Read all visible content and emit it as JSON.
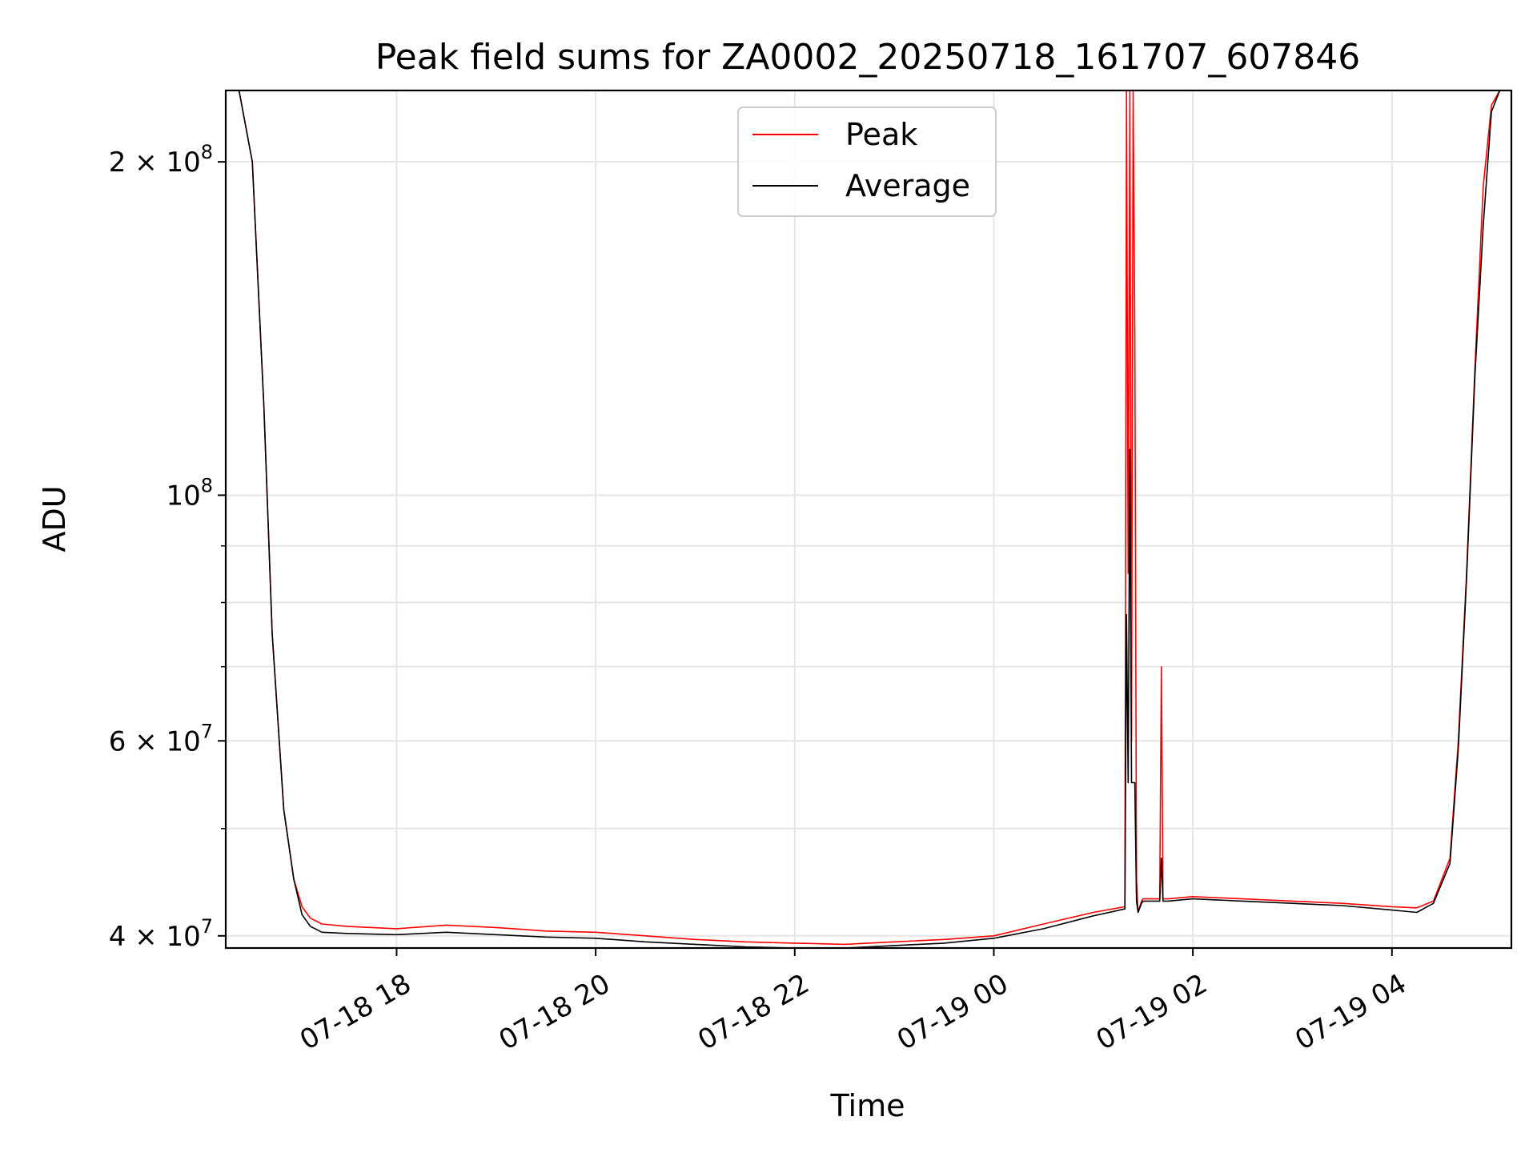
{
  "chart_data": {
    "type": "line",
    "title": "Peak field sums for ZA0002_20250718_161707_607846",
    "xlabel": "Time",
    "ylabel": "ADU",
    "y_scale": "log",
    "ylim": [
      39000000,
      232000000
    ],
    "xlim": [
      "2025-07-18 16:17",
      "2025-07-19 05:12"
    ],
    "grid": true,
    "legend_position": "top-center",
    "x_ticks": [
      {
        "t": "2025-07-18 18:00",
        "label": "07-18 18"
      },
      {
        "t": "2025-07-18 20:00",
        "label": "07-18 20"
      },
      {
        "t": "2025-07-18 22:00",
        "label": "07-18 22"
      },
      {
        "t": "2025-07-19 00:00",
        "label": "07-19 00"
      },
      {
        "t": "2025-07-19 02:00",
        "label": "07-19 02"
      },
      {
        "t": "2025-07-19 04:00",
        "label": "07-19 04"
      }
    ],
    "y_ticks": [
      {
        "value": 40000000,
        "label": "4 × 10",
        "exp": "7"
      },
      {
        "value": 60000000,
        "label": "6 × 10",
        "exp": "7"
      },
      {
        "value": 100000000,
        "label": "10",
        "exp": "8"
      },
      {
        "value": 200000000,
        "label": "2 × 10",
        "exp": "8"
      }
    ],
    "y_minor_ticks": [
      50000000,
      70000000,
      80000000,
      90000000
    ],
    "series": [
      {
        "name": "Peak",
        "color": "#ff0000",
        "x": [
          "2025-07-18 16:17",
          "2025-07-18 16:25",
          "2025-07-18 16:33",
          "2025-07-18 16:40",
          "2025-07-18 16:45",
          "2025-07-18 16:52",
          "2025-07-18 16:58",
          "2025-07-18 17:03",
          "2025-07-18 17:08",
          "2025-07-18 17:15",
          "2025-07-18 17:30",
          "2025-07-18 18:00",
          "2025-07-18 18:30",
          "2025-07-18 19:00",
          "2025-07-18 19:30",
          "2025-07-18 20:00",
          "2025-07-18 20:30",
          "2025-07-18 21:00",
          "2025-07-18 21:30",
          "2025-07-18 22:00",
          "2025-07-18 22:30",
          "2025-07-18 23:00",
          "2025-07-18 23:30",
          "2025-07-19 00:00",
          "2025-07-19 00:30",
          "2025-07-19 01:00",
          "2025-07-19 01:19",
          "2025-07-19 01:20",
          "2025-07-19 01:21",
          "2025-07-19 01:22",
          "2025-07-19 01:23",
          "2025-07-19 01:24",
          "2025-07-19 01:25",
          "2025-07-19 01:26",
          "2025-07-19 01:27",
          "2025-07-19 01:29",
          "2025-07-19 01:30",
          "2025-07-19 01:35",
          "2025-07-19 01:40",
          "2025-07-19 01:41",
          "2025-07-19 01:42",
          "2025-07-19 01:45",
          "2025-07-19 02:00",
          "2025-07-19 02:30",
          "2025-07-19 03:00",
          "2025-07-19 03:30",
          "2025-07-19 04:00",
          "2025-07-19 04:15",
          "2025-07-19 04:25",
          "2025-07-19 04:35",
          "2025-07-19 04:40",
          "2025-07-19 04:45",
          "2025-07-19 04:50",
          "2025-07-19 04:55",
          "2025-07-19 05:00",
          "2025-07-19 05:05",
          "2025-07-19 05:12"
        ],
        "y": [
          232000000,
          232000000,
          200000000,
          120000000,
          75000000,
          52000000,
          45000000,
          42500000,
          41500000,
          41000000,
          40800000,
          40600000,
          40900000,
          40700000,
          40400000,
          40300000,
          40000000,
          39700000,
          39500000,
          39400000,
          39300000,
          39500000,
          39700000,
          40000000,
          41000000,
          42000000,
          42500000,
          232000000,
          85000000,
          232000000,
          60000000,
          232000000,
          140000000,
          45000000,
          42000000,
          43000000,
          43200000,
          43200000,
          43200000,
          70000000,
          43200000,
          43200000,
          43400000,
          43200000,
          43000000,
          42800000,
          42500000,
          42400000,
          43000000,
          47000000,
          60000000,
          85000000,
          130000000,
          190000000,
          225000000,
          232000000,
          232000000
        ]
      },
      {
        "name": "Average",
        "color": "#000000",
        "x": [
          "2025-07-18 16:17",
          "2025-07-18 16:25",
          "2025-07-18 16:33",
          "2025-07-18 16:40",
          "2025-07-18 16:45",
          "2025-07-18 16:52",
          "2025-07-18 16:58",
          "2025-07-18 17:03",
          "2025-07-18 17:08",
          "2025-07-18 17:15",
          "2025-07-18 17:30",
          "2025-07-18 18:00",
          "2025-07-18 18:30",
          "2025-07-18 19:00",
          "2025-07-18 19:30",
          "2025-07-18 20:00",
          "2025-07-18 20:30",
          "2025-07-18 21:00",
          "2025-07-18 21:30",
          "2025-07-18 22:00",
          "2025-07-18 22:30",
          "2025-07-18 23:00",
          "2025-07-18 23:30",
          "2025-07-19 00:00",
          "2025-07-19 00:30",
          "2025-07-19 01:00",
          "2025-07-19 01:19",
          "2025-07-19 01:20",
          "2025-07-19 01:21",
          "2025-07-19 01:22",
          "2025-07-19 01:23",
          "2025-07-19 01:24",
          "2025-07-19 01:25",
          "2025-07-19 01:26",
          "2025-07-19 01:27",
          "2025-07-19 01:29",
          "2025-07-19 01:30",
          "2025-07-19 01:35",
          "2025-07-19 01:40",
          "2025-07-19 01:41",
          "2025-07-19 01:42",
          "2025-07-19 01:45",
          "2025-07-19 02:00",
          "2025-07-19 02:30",
          "2025-07-19 03:00",
          "2025-07-19 03:30",
          "2025-07-19 04:00",
          "2025-07-19 04:15",
          "2025-07-19 04:25",
          "2025-07-19 04:35",
          "2025-07-19 04:40",
          "2025-07-19 04:45",
          "2025-07-19 04:50",
          "2025-07-19 04:55",
          "2025-07-19 05:00",
          "2025-07-19 05:05",
          "2025-07-19 05:12"
        ],
        "y": [
          232000000,
          232000000,
          200000000,
          120000000,
          75000000,
          52000000,
          45000000,
          41800000,
          40800000,
          40300000,
          40200000,
          40100000,
          40300000,
          40100000,
          39900000,
          39800000,
          39500000,
          39300000,
          39100000,
          39000000,
          39000000,
          39200000,
          39400000,
          39800000,
          40600000,
          41700000,
          42300000,
          78000000,
          55000000,
          110000000,
          55000000,
          55000000,
          55000000,
          43000000,
          42000000,
          42800000,
          43000000,
          43000000,
          43000000,
          47000000,
          43000000,
          43000000,
          43200000,
          43000000,
          42800000,
          42600000,
          42200000,
          42000000,
          42800000,
          46500000,
          59000000,
          84000000,
          128000000,
          175000000,
          222000000,
          232000000,
          232000000
        ]
      }
    ]
  }
}
